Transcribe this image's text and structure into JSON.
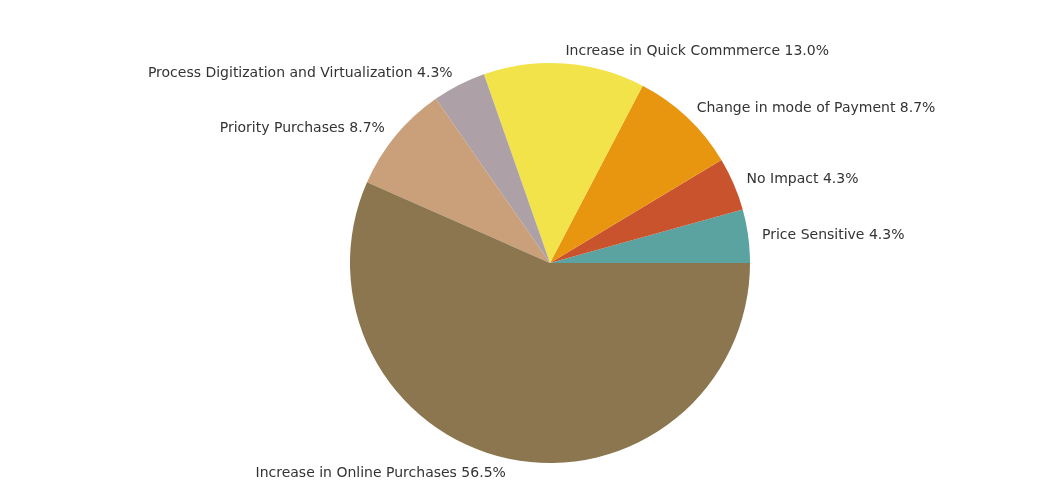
{
  "chart_data": {
    "type": "pie",
    "categories": [
      "Price Sensitive",
      "No Impact",
      "Change in mode of Payment",
      "Increase in Quick Commmerce",
      "Process Digitization and Virtualization",
      "Priority Purchases",
      "Increase in Online Purchases"
    ],
    "values": [
      4.3,
      4.3,
      8.7,
      13.0,
      4.3,
      8.7,
      56.5
    ],
    "value_labels": [
      "4.3%",
      "4.3%",
      "8.7%",
      "13.0%",
      "4.3%",
      "8.7%",
      "56.5%"
    ],
    "colors": [
      "#5ba3a0",
      "#c8532d",
      "#e8950f",
      "#f2e34a",
      "#ada0a6",
      "#c9a07a",
      "#8b7650"
    ]
  }
}
